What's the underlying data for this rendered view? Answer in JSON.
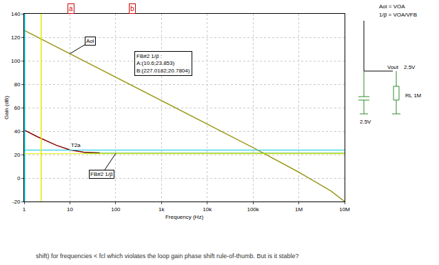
{
  "chart_data": {
    "type": "line",
    "x_label": "Frequency (Hz)",
    "y_label": "Gain (dB)",
    "log": "x",
    "grid": true,
    "xlim": [
      1,
      10000000
    ],
    "ylim": [
      -20,
      140
    ],
    "xticks": [
      {
        "value": 1,
        "label": "1"
      },
      {
        "value": 10,
        "label": "10"
      },
      {
        "value": 100,
        "label": "100"
      },
      {
        "value": 1000,
        "label": "1k"
      },
      {
        "value": 10000,
        "label": "10k"
      },
      {
        "value": 100000,
        "label": "100k"
      },
      {
        "value": 1000000,
        "label": "1M"
      },
      {
        "value": 10000000,
        "label": "10M"
      }
    ],
    "yticks": [
      -20,
      0,
      20,
      40,
      60,
      80,
      100,
      120,
      140
    ],
    "series": [
      {
        "name": "Aol",
        "color": "#9a9a1e",
        "x": [
          1,
          10,
          100,
          1000,
          10000,
          100000,
          1000000,
          2000000,
          5000000,
          10000000
        ],
        "values": [
          126,
          106,
          86,
          66,
          46,
          26,
          5,
          -2,
          -11,
          -20
        ]
      },
      {
        "name": "T2a",
        "color": "#8b0000",
        "x": [
          1,
          2,
          5,
          10,
          20,
          45
        ],
        "values": [
          41,
          35,
          28,
          24,
          22,
          21.5
        ]
      },
      {
        "name": "FB#2 1/β",
        "color": "#20b020",
        "x": [
          20,
          100,
          1000,
          10000,
          100000,
          1000000,
          10000000
        ],
        "values": [
          21,
          21,
          21,
          21,
          21,
          21,
          21
        ]
      }
    ],
    "cursors": [
      {
        "label": "a",
        "x": 10.6,
        "y": 23.853,
        "color": "#00c8d8"
      },
      {
        "label": "b",
        "x": 227.0182,
        "y": 20.7804,
        "color": "#e6e600"
      }
    ],
    "readout": [
      "FB#2 1/β :",
      "A:(10.6;23.853)",
      "B:(227.0182;20.7804)"
    ],
    "schematic": {
      "formula_1": "Aol = VOA",
      "formula_2": "1/β = VOA/VFB",
      "node": "Vout",
      "node_voltage": "2.5V",
      "load": "RL 1M",
      "source": "2.5V"
    },
    "note": "shift) for frequencies < fcl which violates the loop gain phase shift rule-of-thumb. But is it stable?"
  }
}
